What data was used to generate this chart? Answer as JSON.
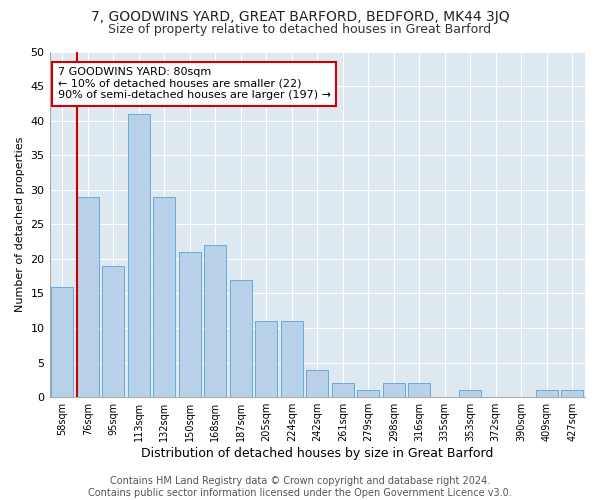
{
  "title1": "7, GOODWINS YARD, GREAT BARFORD, BEDFORD, MK44 3JQ",
  "title2": "Size of property relative to detached houses in Great Barford",
  "xlabel": "Distribution of detached houses by size in Great Barford",
  "ylabel": "Number of detached properties",
  "categories": [
    "58sqm",
    "76sqm",
    "95sqm",
    "113sqm",
    "132sqm",
    "150sqm",
    "168sqm",
    "187sqm",
    "205sqm",
    "224sqm",
    "242sqm",
    "261sqm",
    "279sqm",
    "298sqm",
    "316sqm",
    "335sqm",
    "353sqm",
    "372sqm",
    "390sqm",
    "409sqm",
    "427sqm"
  ],
  "values": [
    16,
    29,
    19,
    41,
    29,
    21,
    22,
    17,
    11,
    11,
    4,
    2,
    1,
    2,
    2,
    0,
    1,
    0,
    0,
    1,
    1
  ],
  "bar_color": "#b8d0e8",
  "bar_edge_color": "#6aaad4",
  "annotation_text": "7 GOODWINS YARD: 80sqm\n← 10% of detached houses are smaller (22)\n90% of semi-detached houses are larger (197) →",
  "annotation_box_color": "white",
  "annotation_box_edge_color": "#cc0000",
  "vline_color": "#cc0000",
  "vline_x": 0.57,
  "ylim": [
    0,
    50
  ],
  "yticks": [
    0,
    5,
    10,
    15,
    20,
    25,
    30,
    35,
    40,
    45,
    50
  ],
  "figure_bg_color": "#ffffff",
  "plot_bg_color": "#dde8f0",
  "grid_color": "#ffffff",
  "footer_text": "Contains HM Land Registry data © Crown copyright and database right 2024.\nContains public sector information licensed under the Open Government Licence v3.0.",
  "title1_fontsize": 10,
  "title2_fontsize": 9,
  "xlabel_fontsize": 9,
  "ylabel_fontsize": 8,
  "tick_fontsize": 8,
  "xtick_fontsize": 7,
  "footer_fontsize": 7,
  "annotation_fontsize": 8
}
